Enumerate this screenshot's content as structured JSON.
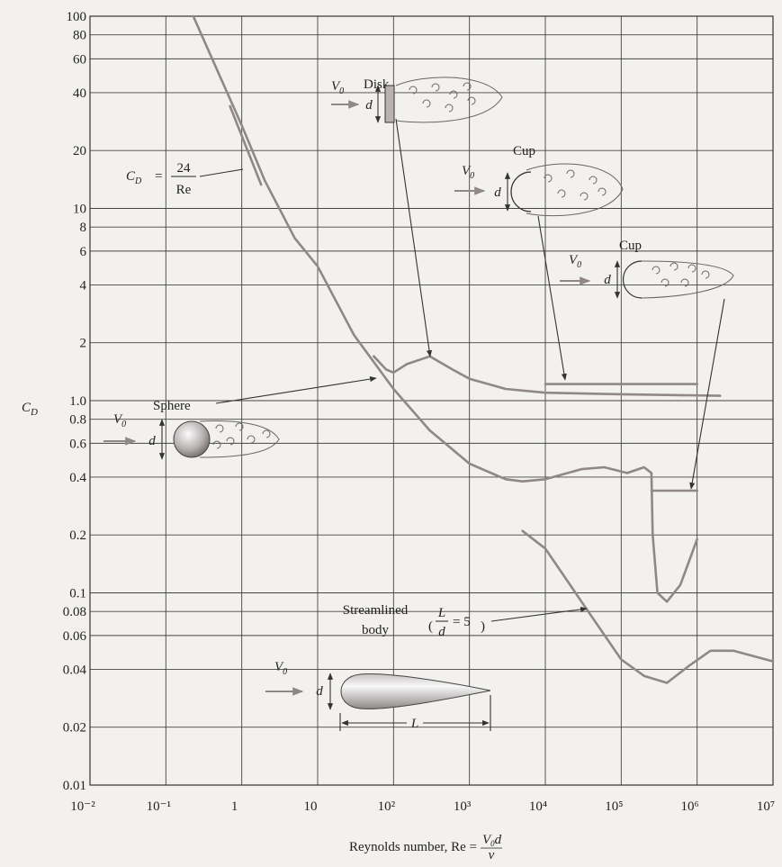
{
  "chart_data": {
    "type": "line",
    "x_scale": "log",
    "y_scale": "log",
    "grid": true,
    "xlim": [
      0.01,
      10000000
    ],
    "ylim": [
      0.01,
      100
    ],
    "xticks": [
      {
        "value": 0.01,
        "label": "10⁻²"
      },
      {
        "value": 0.1,
        "label": "10⁻¹"
      },
      1,
      10,
      {
        "value": 100,
        "label": "10²"
      },
      {
        "value": 1000,
        "label": "10³"
      },
      {
        "value": 10000,
        "label": "10⁴"
      },
      {
        "value": 100000,
        "label": "10⁵"
      },
      {
        "value": 1000000,
        "label": "10⁶"
      },
      {
        "value": 10000000,
        "label": "10⁷"
      }
    ],
    "yticks": [
      0.01,
      0.02,
      0.04,
      0.06,
      0.08,
      0.1,
      0.2,
      0.4,
      0.6,
      0.8,
      {
        "value": 1,
        "label": "1.0"
      },
      2,
      4,
      6,
      8,
      10,
      20,
      40,
      60,
      80,
      100
    ],
    "y_label": {
      "base": "C",
      "sub": "D"
    },
    "x_label": {
      "text": "Reynolds number, Re =",
      "num_base": "V",
      "num_sub": "0",
      "num_rest": "d",
      "den": "ν"
    },
    "series": [
      {
        "color": "#8f8789",
        "x": [
          0.7,
          1.8
        ],
        "values": [
          34,
          13.3
        ]
      },
      {
        "color": "#8f8789",
        "x": [
          0.23,
          0.5,
          1,
          2,
          5,
          10,
          30,
          100,
          300,
          1000,
          3000,
          5000,
          10000,
          30000,
          60000,
          120000,
          200000,
          250000,
          260000,
          300000,
          400000,
          600000,
          1000000
        ],
        "values": [
          100,
          50,
          27,
          14,
          7,
          5,
          2.2,
          1.15,
          0.7,
          0.47,
          0.39,
          0.38,
          0.39,
          0.44,
          0.45,
          0.42,
          0.45,
          0.42,
          0.2,
          0.1,
          0.09,
          0.11,
          0.19
        ]
      },
      {
        "color": "#8f8789",
        "x": [
          55,
          80,
          100,
          150,
          300,
          600,
          1000,
          3000,
          10000,
          100000,
          2000000
        ],
        "values": [
          1.7,
          1.45,
          1.4,
          1.55,
          1.7,
          1.45,
          1.3,
          1.15,
          1.1,
          1.08,
          1.06
        ]
      },
      {
        "color": "#8f8789",
        "x": [
          10000,
          1000000
        ],
        "values": [
          1.22,
          1.22
        ]
      },
      {
        "color": "#8f8789",
        "x": [
          250000,
          1000000
        ],
        "values": [
          0.34,
          0.34
        ]
      },
      {
        "color": "#8f8789",
        "x": [
          5000,
          10000,
          30000,
          100000,
          200000,
          400000,
          800000,
          1500000,
          3000000,
          10000000
        ],
        "values": [
          0.21,
          0.17,
          0.09,
          0.045,
          0.037,
          0.034,
          0.042,
          0.05,
          0.05,
          0.044
        ]
      }
    ],
    "annotations": {
      "stokes": {
        "base": "C",
        "sub": "D",
        "eq": "=",
        "num": "24",
        "den": "Re"
      },
      "disk": {
        "label": "Disk",
        "velocity": {
          "base": "V",
          "sub": "0"
        },
        "dimension": "d"
      },
      "cup_concave": {
        "label": "Cup",
        "velocity": {
          "base": "V",
          "sub": "0"
        },
        "dimension": "d"
      },
      "cup_convex": {
        "label": "Cup",
        "velocity": {
          "base": "V",
          "sub": "0"
        },
        "dimension": "d"
      },
      "sphere": {
        "label": "Sphere",
        "velocity": {
          "base": "V",
          "sub": "0"
        },
        "dimension": "d"
      },
      "streamlined": {
        "label_lines": [
          "Streamlined",
          "body"
        ],
        "ratio": {
          "open": "(",
          "num": "L",
          "den": "d",
          "eq": "= 5",
          "close": ")"
        },
        "velocity": {
          "base": "V",
          "sub": "0"
        },
        "dimension": "d",
        "length": "L"
      }
    }
  }
}
